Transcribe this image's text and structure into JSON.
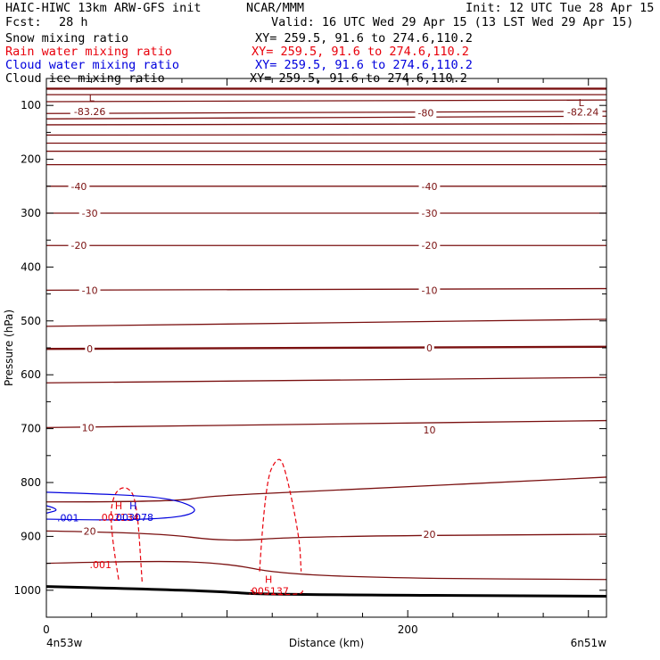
{
  "header": {
    "model": "HAIC-HIWC 13km ARW-GFS init",
    "center": "NCAR/MMM",
    "init": "Init: 12 UTC Tue 28 Apr 15",
    "fcst_label": "Fcst:",
    "fcst_value": "28 h",
    "valid": "Valid: 16 UTC Wed 29 Apr 15 (13 LST Wed 29 Apr 15)"
  },
  "fields": [
    {
      "name": "Snow mixing ratio",
      "xy": "XY= 259.5, 91.6 to 274.6,110.2",
      "color": "#000000"
    },
    {
      "name": "Rain water mixing ratio",
      "xy": "XY= 259.5, 91.6 to 274.6,110.2",
      "color": "#e8000b"
    },
    {
      "name": "Cloud water mixing ratio",
      "xy": "XY= 259.5, 91.6 to 274.6,110.2",
      "color": "#0000dd"
    },
    {
      "name": "Cloud ice mixing ratio",
      "xy": "XY= 259.5, 91.6 to 274.6,110.2",
      "color": "#000000"
    }
  ],
  "chart_data": {
    "type": "line",
    "title": "",
    "xlabel": "Distance (km)",
    "ylabel": "Pressure (hPa)",
    "xlim": [
      0,
      310
    ],
    "ylim": [
      1050,
      50
    ],
    "x_ticks": [
      0,
      200
    ],
    "y_ticks": [
      100,
      200,
      300,
      400,
      500,
      600,
      700,
      800,
      900,
      1000
    ],
    "x_endpoints": {
      "left": "4n53w",
      "right": "6n51w"
    },
    "colors": {
      "temperature": "#7a1010",
      "ground": "#000000",
      "rain": "#e8000b",
      "cloud_water": "#0000dd"
    },
    "isotherm_labels": [
      {
        "x": 24,
        "p": 111,
        "text": "-83.26"
      },
      {
        "x": 297,
        "p": 112,
        "text": "-82.24"
      },
      {
        "x": 210,
        "p": 114,
        "text": "-80"
      },
      {
        "x": 18,
        "p": 250,
        "text": "-40"
      },
      {
        "x": 212,
        "p": 250,
        "text": "-40"
      },
      {
        "x": 24,
        "p": 300,
        "text": "-30"
      },
      {
        "x": 212,
        "p": 300,
        "text": "-30"
      },
      {
        "x": 18,
        "p": 360,
        "text": "-20"
      },
      {
        "x": 212,
        "p": 360,
        "text": "-20"
      },
      {
        "x": 24,
        "p": 443,
        "text": "-10"
      },
      {
        "x": 212,
        "p": 443,
        "text": "-10"
      },
      {
        "x": 24,
        "p": 552,
        "text": "0"
      },
      {
        "x": 212,
        "p": 550,
        "text": "0"
      },
      {
        "x": 23,
        "p": 698,
        "text": "10"
      },
      {
        "x": 212,
        "p": 702,
        "text": "10"
      },
      {
        "x": 24,
        "p": 890,
        "text": "20"
      },
      {
        "x": 212,
        "p": 896,
        "text": "20"
      }
    ],
    "extrema": [
      {
        "x": 25,
        "p": 86,
        "mark": "L",
        "color": "#7a1010"
      },
      {
        "x": 296,
        "p": 95,
        "mark": "L",
        "color": "#7a1010"
      },
      {
        "x": 40,
        "p": 843,
        "mark": "H",
        "label": ".002134",
        "color": "#e8000b"
      },
      {
        "x": 48,
        "p": 843,
        "mark": "H",
        "label": ".003078",
        "color": "#0000dd"
      },
      {
        "x": 123,
        "p": 980,
        "mark": "H",
        "label": ".005137",
        "color": "#e8000b"
      }
    ],
    "contour_labels": [
      {
        "x": 12,
        "p": 865,
        "text": ".001",
        "color": "#0000dd"
      },
      {
        "x": 30,
        "p": 952,
        "text": ".001",
        "color": "#e8000b"
      }
    ],
    "isotherms": [
      {
        "x": [
          0,
          310
        ],
        "p": [
          69,
          69
        ],
        "bold": true
      },
      {
        "x": [
          0,
          310
        ],
        "p": [
          80,
          80
        ]
      },
      {
        "x": [
          0,
          310
        ],
        "p": [
          93,
          90
        ]
      },
      {
        "x": [
          0,
          310
        ],
        "p": [
          115,
          111
        ]
      },
      {
        "x": [
          0,
          310
        ],
        "p": [
          125,
          120
        ]
      },
      {
        "x": [
          0,
          310
        ],
        "p": [
          136,
          134
        ]
      },
      {
        "x": [
          0,
          310
        ],
        "p": [
          155,
          154
        ]
      },
      {
        "x": [
          0,
          310
        ],
        "p": [
          170,
          170
        ]
      },
      {
        "x": [
          0,
          310
        ],
        "p": [
          185,
          185
        ]
      },
      {
        "x": [
          0,
          310
        ],
        "p": [
          210,
          210
        ]
      },
      {
        "x": [
          0,
          310
        ],
        "p": [
          250,
          250
        ]
      },
      {
        "x": [
          0,
          310
        ],
        "p": [
          300,
          300
        ]
      },
      {
        "x": [
          0,
          310
        ],
        "p": [
          360,
          360
        ]
      },
      {
        "x": [
          0,
          310
        ],
        "p": [
          443,
          440
        ]
      },
      {
        "x": [
          0,
          310
        ],
        "p": [
          510,
          497
        ]
      },
      {
        "x": [
          0,
          310
        ],
        "p": [
          552,
          548
        ],
        "bold": true
      },
      {
        "x": [
          0,
          310
        ],
        "p": [
          615,
          605
        ]
      },
      {
        "x": [
          0,
          310
        ],
        "p": [
          698,
          685
        ]
      },
      {
        "x": [
          0,
          70,
          90,
          150,
          310
        ],
        "p": [
          836,
          836,
          825,
          816,
          790
        ]
      },
      {
        "x": [
          0,
          60,
          100,
          140,
          310
        ],
        "p": [
          890,
          893,
          910,
          900,
          896
        ]
      },
      {
        "x": [
          0,
          60,
          100,
          130,
          200,
          310
        ],
        "p": [
          950,
          945,
          950,
          970,
          978,
          980
        ]
      },
      {
        "x": [
          0,
          50,
          100,
          120,
          310
        ],
        "p": [
          993,
          997,
          1003,
          1008,
          1011
        ],
        "bold": true
      }
    ],
    "rain_contours": [
      {
        "x": [
          40,
          35,
          37,
          44,
          50,
          53
        ],
        "p": [
          980,
          880,
          820,
          805,
          830,
          985
        ]
      },
      {
        "x": [
          118,
          121,
          128,
          132,
          140,
          141
        ],
        "p": [
          965,
          800,
          750,
          770,
          900,
          965
        ]
      },
      {
        "x": [
          113,
          117,
          141,
          142
        ],
        "p": [
          1000,
          1008,
          1008,
          1000
        ]
      }
    ],
    "cloud_water_contours": [
      {
        "x": [
          0,
          40,
          70,
          85,
          75,
          40,
          0
        ],
        "p": [
          818,
          822,
          830,
          850,
          865,
          870,
          868
        ]
      },
      {
        "x": [
          0,
          8,
          0
        ],
        "p": [
          843,
          850,
          857
        ]
      }
    ]
  }
}
